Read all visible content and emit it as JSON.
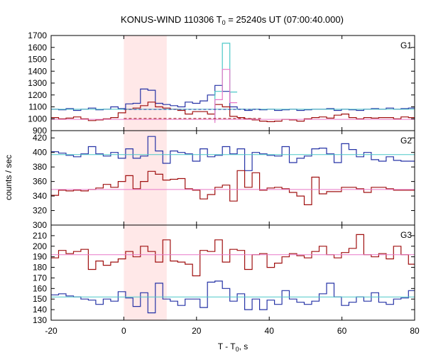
{
  "chart_data": {
    "type": "line",
    "title_main": "KONUS-WIND 110306 T",
    "title_sub": "0",
    "title_rest": " = 25240s UT (07:00:40.000)",
    "xlabel_main": "T - T",
    "xlabel_sub": "0",
    "xlabel_rest": ", s",
    "ylabel": "counts / sec",
    "xlim": [
      -20,
      80
    ],
    "xticks": [
      "-20",
      "0",
      "20",
      "40",
      "60",
      "80"
    ],
    "highlight_interval": [
      0,
      11.8
    ],
    "colors": {
      "blue": "#2633a6",
      "red": "#a01010",
      "cyan": "#4cc8c8",
      "pink": "#e878c8",
      "highlight": "#ffe8e8"
    },
    "panels": [
      {
        "label": "G1",
        "ylim": [
          900,
          1700
        ],
        "yticks": [
          "900",
          "1000",
          "1100",
          "1200",
          "1300",
          "1400",
          "1500",
          "1600",
          "1700"
        ],
        "series": [
          {
            "kind": "step",
            "color": "blue",
            "x_start": -20,
            "bin": 2.048,
            "values": [
              1080,
              1075,
              1085,
              1070,
              1080,
              1090,
              1075,
              1080,
              1100,
              1085,
              1125,
              1130,
              1250,
              1240,
              1130,
              1120,
              1110,
              1100,
              1140,
              1130,
              1150,
              1200,
              1280,
              1230,
              1100,
              1080,
              1070,
              1080,
              1075,
              1080,
              1070,
              1075,
              1080,
              1070,
              1075,
              1080,
              1080,
              1085,
              1070,
              1080,
              1075,
              1070,
              1080,
              1085,
              1080,
              1090,
              1080,
              1085,
              1090
            ]
          },
          {
            "kind": "step",
            "color": "red",
            "x_start": -20,
            "bin": 2.048,
            "values": [
              1010,
              1000,
              1005,
              1015,
              1000,
              985,
              990,
              1000,
              1010,
              1050,
              1080,
              1090,
              1110,
              1140,
              1100,
              1090,
              1080,
              1070,
              1040,
              1060,
              1060,
              1040,
              1120,
              1100,
              1020,
              1010,
              1000,
              990,
              980,
              975,
              980,
              995,
              990,
              980,
              1000,
              1010,
              1015,
              1005,
              1030,
              1040,
              1010,
              1000,
              1010,
              1005,
              1010,
              1010,
              1000,
              1015,
              1010
            ]
          },
          {
            "kind": "step",
            "color": "cyan",
            "x_start": -20,
            "bin": 2.048,
            "values": [
              null,
              null,
              null,
              null,
              null,
              null,
              null,
              null,
              null,
              null,
              null,
              null,
              null,
              null,
              null,
              null,
              null,
              null,
              null,
              null,
              null,
              null,
              1230,
              1635,
              1225,
              null,
              null,
              null,
              null,
              null,
              null,
              null,
              null,
              null,
              null,
              null,
              null,
              null,
              null,
              null,
              null,
              null,
              null,
              null,
              null,
              null,
              null,
              null,
              null
            ]
          },
          {
            "kind": "step",
            "color": "pink",
            "x_start": -20,
            "bin": 2.048,
            "values": [
              null,
              null,
              null,
              null,
              null,
              null,
              null,
              null,
              null,
              null,
              null,
              null,
              null,
              null,
              null,
              null,
              null,
              null,
              null,
              null,
              null,
              null,
              1160,
              1415,
              1135,
              null,
              null,
              null,
              null,
              null,
              null,
              null,
              null,
              null,
              null,
              null,
              null,
              null,
              null,
              null,
              null,
              null,
              null,
              null,
              null,
              null,
              null,
              null,
              null
            ]
          },
          {
            "kind": "hline",
            "color": "cyan",
            "y": 1080
          },
          {
            "kind": "hline",
            "color": "pink",
            "y": 995
          },
          {
            "kind": "dashed",
            "color": "blue",
            "y": 1078,
            "x_range": [
              0,
              38
            ]
          },
          {
            "kind": "dashed",
            "color": "red",
            "y": 1002,
            "x_range": [
              0,
              38
            ]
          }
        ]
      },
      {
        "label": "G2",
        "ylim": [
          300,
          430
        ],
        "yticks": [
          "300",
          "320",
          "340",
          "360",
          "380",
          "400",
          "420"
        ],
        "series": [
          {
            "kind": "step",
            "color": "blue",
            "x_start": -20,
            "bin": 2.048,
            "values": [
              401,
              399,
              396,
              394,
              398,
              408,
              398,
              395,
              400,
              392,
              405,
              392,
              395,
              422,
              402,
              385,
              402,
              400,
              398,
              388,
              405,
              394,
              396,
              408,
              398,
              405,
              375,
              400,
              398,
              396,
              395,
              408,
              386,
              392,
              395,
              405,
              406,
              398,
              386,
              412,
              404,
              394,
              400,
              390,
              388,
              394,
              389,
              388,
              388
            ]
          },
          {
            "kind": "step",
            "color": "red",
            "x_start": -20,
            "bin": 2.048,
            "values": [
              341,
              348,
              347,
              348,
              347,
              349,
              351,
              356,
              352,
              360,
              368,
              350,
              360,
              374,
              370,
              362,
              363,
              364,
              350,
              348,
              336,
              342,
              352,
              355,
              333,
              375,
              352,
              372,
              348,
              351,
              352,
              350,
              345,
              340,
              328,
              366,
              343,
              346,
              346,
              352,
              352,
              350,
              345,
              352,
              352,
              350,
              348,
              348,
              348
            ]
          },
          {
            "kind": "hline",
            "color": "cyan",
            "y": 397
          },
          {
            "kind": "hline",
            "color": "pink",
            "y": 349
          }
        ]
      },
      {
        "label": "G3",
        "ylim": [
          130,
          220
        ],
        "yticks": [
          "130",
          "140",
          "150",
          "160",
          "170",
          "180",
          "190",
          "200",
          "210"
        ],
        "series": [
          {
            "kind": "step",
            "color": "red",
            "x_start": -20,
            "bin": 2.048,
            "values": [
              189,
              196,
              193,
              195,
              197,
              178,
              186,
              182,
              185,
              188,
              195,
              190,
              200,
              195,
              185,
              206,
              186,
              185,
              183,
              172,
              196,
              195,
              206,
              185,
              197,
              196,
              178,
              192,
              193,
              180,
              184,
              190,
              193,
              191,
              189,
              195,
              200,
              192,
              189,
              194,
              198,
              211,
              192,
              190,
              193,
              188,
              200,
              192,
              183
            ]
          },
          {
            "kind": "step",
            "color": "blue",
            "x_start": -20,
            "bin": 2.048,
            "values": [
              154,
              155,
              153,
              152,
              150,
              149,
              145,
              150,
              148,
              157,
              151,
              143,
              156,
              137,
              165,
              150,
              148,
              144,
              150,
              150,
              142,
              166,
              167,
              160,
              148,
              155,
              140,
              150,
              140,
              149,
              145,
              158,
              150,
              147,
              145,
              148,
              155,
              165,
              152,
              144,
              147,
              152,
              148,
              156,
              147,
              145,
              150,
              151,
              158
            ]
          },
          {
            "kind": "hline",
            "color": "pink",
            "y": 192
          },
          {
            "kind": "hline",
            "color": "cyan",
            "y": 152
          }
        ]
      }
    ]
  }
}
